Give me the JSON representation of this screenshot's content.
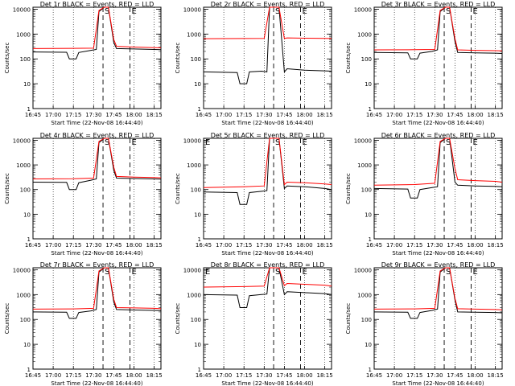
{
  "figure": {
    "xlabel": "Start Time (22-Nov-08 16:44:40)",
    "ylabel": "Counts/sec"
  },
  "chart_data": [
    {
      "type": "line",
      "title": "Det 1r BLACK = Events, RED = LLD",
      "xlabel": "Start Time (22-Nov-08 16:44:40)",
      "ylabel": "Counts/sec",
      "y_scale": "log",
      "ylim": [
        1,
        12000
      ],
      "x_ticks": [
        "16:45",
        "17:00",
        "17:15",
        "17:30",
        "17:45",
        "18:00",
        "18:15"
      ],
      "y_ticks": [
        "1",
        "10",
        "100",
        "1000",
        "10000"
      ],
      "markers": [
        {
          "label": "S",
          "time": "17:37"
        },
        {
          "label": "E",
          "time": "17:57"
        }
      ],
      "series": [
        {
          "name": "Events",
          "color": "#000000",
          "x": [
            "16:45",
            "17:10",
            "17:12",
            "17:17",
            "17:19",
            "17:28",
            "17:32",
            "17:34",
            "17:38",
            "17:41",
            "17:45",
            "17:47",
            "18:00",
            "18:15",
            "18:20"
          ],
          "values": [
            190,
            185,
            100,
            100,
            180,
            220,
            240,
            8000,
            12000,
            12000,
            450,
            260,
            250,
            240,
            235
          ]
        },
        {
          "name": "LLD",
          "color": "#ff0000",
          "x": [
            "16:45",
            "17:15",
            "17:30",
            "17:34",
            "17:38",
            "17:41",
            "17:45",
            "17:47",
            "18:00",
            "18:15",
            "18:20"
          ],
          "values": [
            260,
            265,
            270,
            9000,
            12000,
            12000,
            600,
            320,
            300,
            285,
            280
          ]
        }
      ]
    },
    {
      "type": "line",
      "title": "Det 2r BLACK = Events, RED = LLD",
      "xlabel": "Start Time (22-Nov-08 16:44:40)",
      "ylabel": "Counts/sec",
      "y_scale": "log",
      "ylim": [
        1,
        12000
      ],
      "x_ticks": [
        "16:45",
        "17:00",
        "17:15",
        "17:30",
        "17:45",
        "18:00",
        "18:15"
      ],
      "y_ticks": [
        "1",
        "10",
        "100",
        "1000",
        "10000"
      ],
      "markers": [
        {
          "label": "S",
          "time": "17:37"
        },
        {
          "label": "E",
          "time": "17:57"
        }
      ],
      "series": [
        {
          "name": "Events",
          "color": "#000000",
          "x": [
            "16:45",
            "17:10",
            "17:12",
            "17:17",
            "17:19",
            "17:28",
            "17:32",
            "17:34",
            "17:38",
            "17:41",
            "17:45",
            "17:47",
            "18:00",
            "18:15",
            "18:20"
          ],
          "values": [
            30,
            28,
            10,
            10,
            30,
            32,
            30,
            12000,
            12000,
            12000,
            30,
            40,
            35,
            33,
            32
          ]
        },
        {
          "name": "LLD",
          "color": "#ff0000",
          "x": [
            "16:45",
            "17:15",
            "17:30",
            "17:34",
            "17:38",
            "17:41",
            "17:45",
            "17:47",
            "18:00",
            "18:15",
            "18:20"
          ],
          "values": [
            650,
            660,
            670,
            12000,
            12000,
            12000,
            660,
            700,
            680,
            670,
            660
          ]
        }
      ]
    },
    {
      "type": "line",
      "title": "Det 3r BLACK = Events, RED = LLD",
      "xlabel": "Start Time (22-Nov-08 16:44:40)",
      "ylabel": "Counts/sec",
      "y_scale": "log",
      "ylim": [
        1,
        12000
      ],
      "x_ticks": [
        "16:45",
        "17:00",
        "17:15",
        "17:30",
        "17:45",
        "18:00",
        "18:15"
      ],
      "y_ticks": [
        "1",
        "10",
        "100",
        "1000",
        "10000"
      ],
      "markers": [
        {
          "label": "S",
          "time": "17:37"
        },
        {
          "label": "E",
          "time": "17:57"
        }
      ],
      "series": [
        {
          "name": "Events",
          "color": "#000000",
          "x": [
            "16:45",
            "17:10",
            "17:12",
            "17:17",
            "17:19",
            "17:28",
            "17:32",
            "17:34",
            "17:38",
            "17:41",
            "17:45",
            "17:47",
            "18:00",
            "18:15",
            "18:20"
          ],
          "values": [
            180,
            175,
            100,
            100,
            170,
            200,
            230,
            8000,
            12000,
            12000,
            500,
            180,
            175,
            170,
            165
          ]
        },
        {
          "name": "LLD",
          "color": "#ff0000",
          "x": [
            "16:45",
            "17:15",
            "17:30",
            "17:34",
            "17:38",
            "17:41",
            "17:45",
            "17:47",
            "18:00",
            "18:15",
            "18:20"
          ],
          "values": [
            230,
            235,
            240,
            9000,
            12000,
            12000,
            650,
            230,
            220,
            215,
            210
          ]
        }
      ]
    },
    {
      "type": "line",
      "title": "Det 4r BLACK = Events, RED = LLD",
      "xlabel": "Start Time (22-Nov-08 16:44:40)",
      "ylabel": "Counts/sec",
      "y_scale": "log",
      "ylim": [
        1,
        12000
      ],
      "x_ticks": [
        "16:45",
        "17:00",
        "17:15",
        "17:30",
        "17:45",
        "18:00",
        "18:15"
      ],
      "y_ticks": [
        "1",
        "10",
        "100",
        "1000",
        "10000"
      ],
      "markers": [
        {
          "label": "S",
          "time": "17:37"
        },
        {
          "label": "E",
          "time": "17:57"
        }
      ],
      "series": [
        {
          "name": "Events",
          "color": "#000000",
          "x": [
            "16:45",
            "17:10",
            "17:12",
            "17:17",
            "17:19",
            "17:28",
            "17:32",
            "17:34",
            "17:38",
            "17:41",
            "17:45",
            "17:47",
            "18:00",
            "18:15",
            "18:20"
          ],
          "values": [
            200,
            195,
            100,
            100,
            190,
            240,
            270,
            8000,
            12000,
            12000,
            600,
            290,
            280,
            270,
            265
          ]
        },
        {
          "name": "LLD",
          "color": "#ff0000",
          "x": [
            "16:45",
            "17:15",
            "17:30",
            "17:34",
            "17:38",
            "17:41",
            "17:45",
            "17:47",
            "18:00",
            "18:15",
            "18:20"
          ],
          "values": [
            270,
            275,
            290,
            9000,
            12000,
            12000,
            800,
            340,
            320,
            310,
            300
          ]
        }
      ]
    },
    {
      "type": "line",
      "title": "Det 5r BLACK = Events, RED = LLD",
      "xlabel": "Start Time (22-Nov-08 16:44:40)",
      "ylabel": "Counts/sec",
      "y_scale": "log",
      "ylim": [
        1,
        12000
      ],
      "x_ticks": [
        "16:45",
        "17:00",
        "17:15",
        "17:30",
        "17:45",
        "18:00",
        "18:15"
      ],
      "y_ticks": [
        "1",
        "10",
        "100",
        "1000",
        "10000"
      ],
      "markers": [
        {
          "label": "E",
          "time": "16:45"
        },
        {
          "label": "S",
          "time": "17:37"
        },
        {
          "label": "E",
          "time": "17:57"
        }
      ],
      "series": [
        {
          "name": "Events",
          "color": "#000000",
          "x": [
            "16:45",
            "17:10",
            "17:12",
            "17:17",
            "17:19",
            "17:28",
            "17:32",
            "17:34",
            "17:38",
            "17:41",
            "17:45",
            "17:47",
            "18:00",
            "18:15",
            "18:20"
          ],
          "values": [
            80,
            75,
            25,
            25,
            75,
            85,
            90,
            12000,
            12000,
            12000,
            110,
            140,
            130,
            110,
            100
          ]
        },
        {
          "name": "LLD",
          "color": "#ff0000",
          "x": [
            "16:45",
            "17:15",
            "17:30",
            "17:34",
            "17:38",
            "17:41",
            "17:45",
            "17:47",
            "18:00",
            "18:15",
            "18:20"
          ],
          "values": [
            120,
            130,
            140,
            12000,
            12000,
            12000,
            160,
            200,
            190,
            170,
            160
          ]
        }
      ]
    },
    {
      "type": "line",
      "title": "Det 6r BLACK = Events, RED = LLD",
      "xlabel": "Start Time (22-Nov-08 16:44:40)",
      "ylabel": "Counts/sec",
      "y_scale": "log",
      "ylim": [
        1,
        12000
      ],
      "x_ticks": [
        "16:45",
        "17:00",
        "17:15",
        "17:30",
        "17:45",
        "18:00",
        "18:15"
      ],
      "y_ticks": [
        "1",
        "10",
        "100",
        "1000",
        "10000"
      ],
      "markers": [
        {
          "label": "S",
          "time": "17:37"
        },
        {
          "label": "E",
          "time": "17:57"
        }
      ],
      "series": [
        {
          "name": "Events",
          "color": "#000000",
          "x": [
            "16:45",
            "17:10",
            "17:12",
            "17:17",
            "17:19",
            "17:28",
            "17:32",
            "17:34",
            "17:38",
            "17:41",
            "17:45",
            "17:47",
            "18:00",
            "18:15",
            "18:20"
          ],
          "values": [
            110,
            105,
            45,
            45,
            100,
            120,
            130,
            8000,
            12000,
            12000,
            200,
            150,
            140,
            135,
            130
          ]
        },
        {
          "name": "LLD",
          "color": "#ff0000",
          "x": [
            "16:45",
            "17:15",
            "17:30",
            "17:34",
            "17:38",
            "17:41",
            "17:45",
            "17:47",
            "18:00",
            "18:15",
            "18:20"
          ],
          "values": [
            150,
            160,
            180,
            9000,
            12000,
            12000,
            700,
            250,
            230,
            215,
            200
          ]
        }
      ]
    },
    {
      "type": "line",
      "title": "Det 7r BLACK = Events, RED = LLD",
      "xlabel": "Start Time (22-Nov-08 16:44:40)",
      "ylabel": "Counts/sec",
      "y_scale": "log",
      "ylim": [
        1,
        12000
      ],
      "x_ticks": [
        "16:45",
        "17:00",
        "17:15",
        "17:30",
        "17:45",
        "18:00",
        "18:15"
      ],
      "y_ticks": [
        "1",
        "10",
        "100",
        "1000",
        "10000"
      ],
      "markers": [
        {
          "label": "S",
          "time": "17:37"
        },
        {
          "label": "E",
          "time": "17:57"
        }
      ],
      "series": [
        {
          "name": "Events",
          "color": "#000000",
          "x": [
            "16:45",
            "17:10",
            "17:12",
            "17:17",
            "17:19",
            "17:28",
            "17:32",
            "17:34",
            "17:38",
            "17:41",
            "17:45",
            "17:47",
            "18:00",
            "18:15",
            "18:20"
          ],
          "values": [
            200,
            195,
            110,
            110,
            190,
            220,
            250,
            8000,
            12000,
            12000,
            500,
            250,
            240,
            230,
            225
          ]
        },
        {
          "name": "LLD",
          "color": "#ff0000",
          "x": [
            "16:45",
            "17:15",
            "17:30",
            "17:34",
            "17:38",
            "17:41",
            "17:45",
            "17:47",
            "18:00",
            "18:15",
            "18:20"
          ],
          "values": [
            260,
            265,
            280,
            9000,
            12000,
            12000,
            650,
            300,
            290,
            280,
            270
          ]
        }
      ]
    },
    {
      "type": "line",
      "title": "Det 8r BLACK = Events, RED = LLD",
      "xlabel": "Start Time (22-Nov-08 16:44:40)",
      "ylabel": "Counts/sec",
      "y_scale": "log",
      "ylim": [
        1,
        12000
      ],
      "x_ticks": [
        "16:45",
        "17:00",
        "17:15",
        "17:30",
        "17:45",
        "18:00",
        "18:15"
      ],
      "y_ticks": [
        "1",
        "10",
        "100",
        "1000",
        "10000"
      ],
      "markers": [
        {
          "label": "E",
          "time": "16:45"
        },
        {
          "label": "S",
          "time": "17:37"
        },
        {
          "label": "E",
          "time": "17:57"
        }
      ],
      "series": [
        {
          "name": "Events",
          "color": "#000000",
          "x": [
            "16:45",
            "17:10",
            "17:12",
            "17:17",
            "17:19",
            "17:28",
            "17:32",
            "17:34",
            "17:38",
            "17:41",
            "17:45",
            "17:47",
            "18:00",
            "18:15",
            "18:20"
          ],
          "values": [
            1000,
            950,
            300,
            300,
            900,
            1000,
            1050,
            12000,
            12000,
            12000,
            1000,
            1300,
            1200,
            1100,
            1000
          ]
        },
        {
          "name": "LLD",
          "color": "#ff0000",
          "x": [
            "16:45",
            "17:15",
            "17:30",
            "17:34",
            "17:38",
            "17:41",
            "17:45",
            "17:47",
            "18:00",
            "18:15",
            "18:20"
          ],
          "values": [
            2000,
            2100,
            2200,
            12000,
            12000,
            12000,
            2300,
            2800,
            2600,
            2400,
            2200
          ]
        }
      ]
    },
    {
      "type": "line",
      "title": "Det 9r BLACK = Events, RED = LLD",
      "xlabel": "Start Time (22-Nov-08 16:44:40)",
      "ylabel": "Counts/sec",
      "y_scale": "log",
      "ylim": [
        1,
        12000
      ],
      "x_ticks": [
        "16:45",
        "17:00",
        "17:15",
        "17:30",
        "17:45",
        "18:00",
        "18:15"
      ],
      "y_ticks": [
        "1",
        "10",
        "100",
        "1000",
        "10000"
      ],
      "markers": [
        {
          "label": "S",
          "time": "17:37"
        },
        {
          "label": "E",
          "time": "17:57"
        }
      ],
      "series": [
        {
          "name": "Events",
          "color": "#000000",
          "x": [
            "16:45",
            "17:10",
            "17:12",
            "17:17",
            "17:19",
            "17:28",
            "17:32",
            "17:34",
            "17:38",
            "17:41",
            "17:45",
            "17:47",
            "18:00",
            "18:15",
            "18:20"
          ],
          "values": [
            200,
            195,
            110,
            110,
            190,
            230,
            260,
            8000,
            12000,
            12000,
            600,
            200,
            195,
            190,
            185
          ]
        },
        {
          "name": "LLD",
          "color": "#ff0000",
          "x": [
            "16:45",
            "17:15",
            "17:30",
            "17:34",
            "17:38",
            "17:41",
            "17:45",
            "17:47",
            "18:00",
            "18:15",
            "18:20"
          ],
          "values": [
            260,
            265,
            280,
            9000,
            12000,
            12000,
            700,
            270,
            260,
            250,
            245
          ]
        }
      ]
    }
  ]
}
